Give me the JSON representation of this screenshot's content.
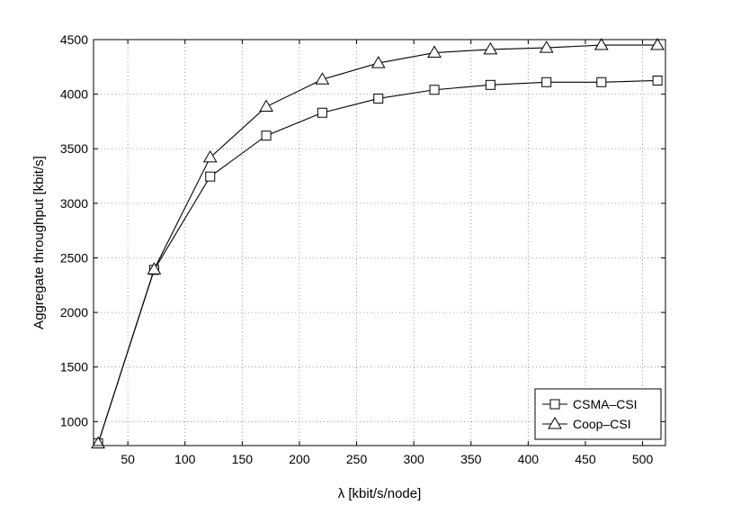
{
  "chart_data": {
    "type": "line",
    "title": "",
    "xlabel": "λ  [kbit/s/node]",
    "ylabel": "Aggregate throughput [kbit/s]",
    "xlim": [
      20,
      520
    ],
    "ylim": [
      780,
      4500
    ],
    "xticks": [
      50,
      100,
      150,
      200,
      250,
      300,
      350,
      400,
      450,
      500
    ],
    "yticks": [
      1000,
      1500,
      2000,
      2500,
      3000,
      3500,
      4000,
      4500
    ],
    "grid": true,
    "legend_position": "bottom-right",
    "series": [
      {
        "name": "CSMA–CSI",
        "marker": "square",
        "x": [
          24,
          73,
          122,
          171,
          220,
          269,
          318,
          367,
          416,
          464,
          513
        ],
        "y": [
          800,
          2390,
          3245,
          3620,
          3830,
          3960,
          4040,
          4085,
          4110,
          4110,
          4125
        ]
      },
      {
        "name": "Coop–CSI",
        "marker": "triangle",
        "x": [
          24,
          73,
          122,
          171,
          220,
          269,
          318,
          367,
          416,
          464,
          513
        ],
        "y": [
          800,
          2395,
          3420,
          3885,
          4135,
          4285,
          4380,
          4410,
          4425,
          4450,
          4450
        ]
      }
    ]
  }
}
